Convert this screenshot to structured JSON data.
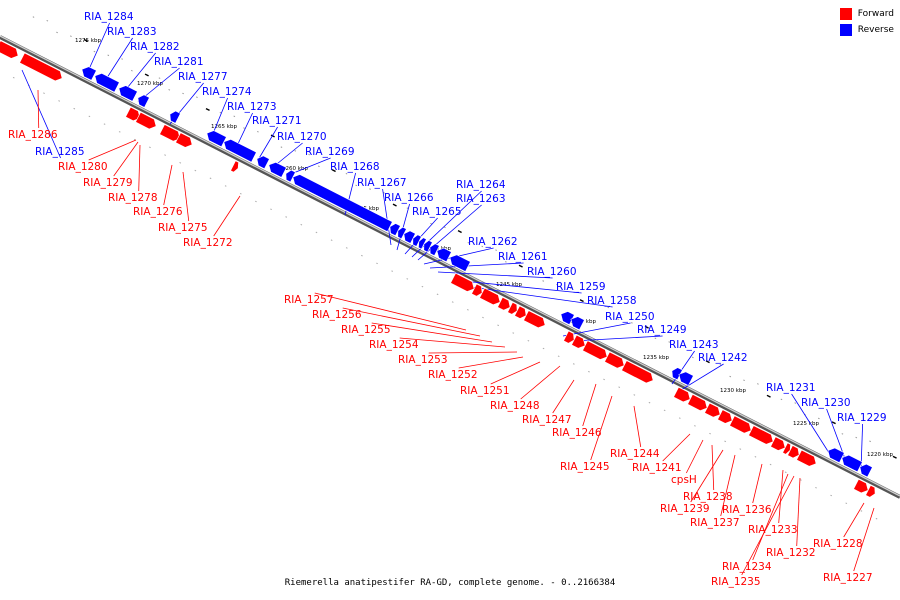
{
  "caption": "Riemerella anatipestifer RA-GD, complete genome. - 0..2166384",
  "legend": [
    {
      "label": "Forward",
      "color": "#ff0000"
    },
    {
      "label": "Reverse",
      "color": "#0000ff"
    }
  ],
  "colors": {
    "forward": "#ff0000",
    "reverse": "#0000ff",
    "backbone": "#888888"
  },
  "scale_ticks": [
    "1275 kbp",
    "1270 kbp",
    "1265 kbp",
    "1260 kbp",
    "1255 kbp",
    "1250 kbp",
    "1245 kbp",
    "1240 kbp",
    "1235 kbp",
    "1230 kbp",
    "1225 kbp",
    "1220 kbp"
  ],
  "genes": [
    {
      "name": "RIA_1284",
      "strand": "reverse"
    },
    {
      "name": "RIA_1283",
      "strand": "reverse"
    },
    {
      "name": "RIA_1282",
      "strand": "reverse"
    },
    {
      "name": "RIA_1281",
      "strand": "reverse"
    },
    {
      "name": "RIA_1277",
      "strand": "reverse"
    },
    {
      "name": "RIA_1274",
      "strand": "reverse"
    },
    {
      "name": "RIA_1273",
      "strand": "reverse"
    },
    {
      "name": "RIA_1271",
      "strand": "reverse"
    },
    {
      "name": "RIA_1270",
      "strand": "reverse"
    },
    {
      "name": "RIA_1269",
      "strand": "reverse"
    },
    {
      "name": "RIA_1268",
      "strand": "reverse"
    },
    {
      "name": "RIA_1267",
      "strand": "reverse"
    },
    {
      "name": "RIA_1266",
      "strand": "reverse"
    },
    {
      "name": "RIA_1265",
      "strand": "reverse"
    },
    {
      "name": "RIA_1264",
      "strand": "reverse"
    },
    {
      "name": "RIA_1263",
      "strand": "reverse"
    },
    {
      "name": "RIA_1262",
      "strand": "reverse"
    },
    {
      "name": "RIA_1261",
      "strand": "reverse"
    },
    {
      "name": "RIA_1260",
      "strand": "reverse"
    },
    {
      "name": "RIA_1259",
      "strand": "reverse"
    },
    {
      "name": "RIA_1258",
      "strand": "reverse"
    },
    {
      "name": "RIA_1250",
      "strand": "reverse"
    },
    {
      "name": "RIA_1249",
      "strand": "reverse"
    },
    {
      "name": "RIA_1243",
      "strand": "reverse"
    },
    {
      "name": "RIA_1242",
      "strand": "reverse"
    },
    {
      "name": "RIA_1231",
      "strand": "reverse"
    },
    {
      "name": "RIA_1230",
      "strand": "reverse"
    },
    {
      "name": "RIA_1229",
      "strand": "reverse"
    },
    {
      "name": "RIA_1285",
      "strand": "reverse"
    },
    {
      "name": "RIA_1286",
      "strand": "forward"
    },
    {
      "name": "RIA_1280",
      "strand": "forward"
    },
    {
      "name": "RIA_1279",
      "strand": "forward"
    },
    {
      "name": "RIA_1278",
      "strand": "forward"
    },
    {
      "name": "RIA_1276",
      "strand": "forward"
    },
    {
      "name": "RIA_1275",
      "strand": "forward"
    },
    {
      "name": "RIA_1272",
      "strand": "forward"
    },
    {
      "name": "RIA_1257",
      "strand": "forward"
    },
    {
      "name": "RIA_1256",
      "strand": "forward"
    },
    {
      "name": "RIA_1255",
      "strand": "forward"
    },
    {
      "name": "RIA_1254",
      "strand": "forward"
    },
    {
      "name": "RIA_1253",
      "strand": "forward"
    },
    {
      "name": "RIA_1252",
      "strand": "forward"
    },
    {
      "name": "RIA_1251",
      "strand": "forward"
    },
    {
      "name": "RIA_1248",
      "strand": "forward"
    },
    {
      "name": "RIA_1247",
      "strand": "forward"
    },
    {
      "name": "RIA_1246",
      "strand": "forward"
    },
    {
      "name": "RIA_1245",
      "strand": "forward"
    },
    {
      "name": "RIA_1244",
      "strand": "forward"
    },
    {
      "name": "RIA_1241",
      "strand": "forward"
    },
    {
      "name": "cpsH",
      "strand": "forward"
    },
    {
      "name": "RIA_1238",
      "strand": "forward"
    },
    {
      "name": "RIA_1239",
      "strand": "forward"
    },
    {
      "name": "RIA_1237",
      "strand": "forward"
    },
    {
      "name": "RIA_1236",
      "strand": "forward"
    },
    {
      "name": "RIA_1233",
      "strand": "forward"
    },
    {
      "name": "RIA_1232",
      "strand": "forward"
    },
    {
      "name": "RIA_1234",
      "strand": "forward"
    },
    {
      "name": "RIA_1235",
      "strand": "forward"
    },
    {
      "name": "RIA_1228",
      "strand": "forward"
    },
    {
      "name": "RIA_1227",
      "strand": "forward"
    }
  ]
}
